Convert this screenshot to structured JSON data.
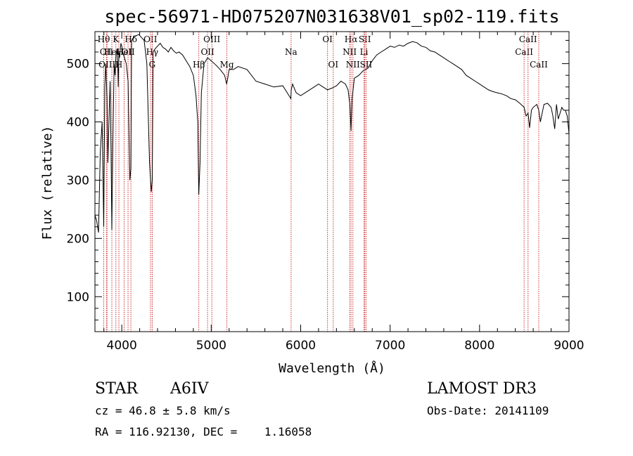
{
  "chart_data": {
    "type": "line",
    "title": "spec-56971-HD075207N031638V01_sp02-119.fits",
    "xlabel": "Wavelength (Å)",
    "ylabel": "Flux (relative)",
    "xlim": [
      3700,
      9000
    ],
    "ylim": [
      40,
      555
    ],
    "x_ticks": [
      4000,
      5000,
      6000,
      7000,
      8000,
      9000
    ],
    "y_ticks": [
      100,
      200,
      300,
      400,
      500
    ],
    "grid": false,
    "series": [
      {
        "x": [
          3700,
          3720,
          3740,
          3760,
          3780,
          3798,
          3810,
          3820,
          3835,
          3845,
          3860,
          3870,
          3880,
          3889,
          3900,
          3915,
          3925,
          3935,
          3945,
          3955,
          3960,
          3968,
          3975,
          3990,
          4000,
          4010,
          4030,
          4050,
          4070,
          4090,
          4102,
          4110,
          4130,
          4160,
          4190,
          4220,
          4250,
          4280,
          4310,
          4330,
          4341,
          4350,
          4370,
          4400,
          4430,
          4460,
          4490,
          4520,
          4550,
          4580,
          4610,
          4640,
          4680,
          4720,
          4760,
          4800,
          4830,
          4850,
          4861,
          4875,
          4890,
          4920,
          4960,
          5000,
          5050,
          5100,
          5150,
          5172,
          5185,
          5200,
          5250,
          5300,
          5400,
          5500,
          5600,
          5700,
          5800,
          5850,
          5890,
          5895,
          5910,
          5950,
          6000,
          6050,
          6100,
          6150,
          6200,
          6250,
          6300,
          6350,
          6400,
          6450,
          6500,
          6530,
          6550,
          6563,
          6575,
          6600,
          6650,
          6700,
          6750,
          6800,
          6850,
          6900,
          6950,
          7000,
          7050,
          7100,
          7150,
          7200,
          7250,
          7300,
          7350,
          7400,
          7450,
          7500,
          7550,
          7600,
          7650,
          7700,
          7750,
          7800,
          7850,
          7900,
          7950,
          8000,
          8050,
          8100,
          8150,
          8200,
          8250,
          8300,
          8350,
          8400,
          8450,
          8498,
          8520,
          8542,
          8560,
          8580,
          8600,
          8640,
          8662,
          8680,
          8720,
          8760,
          8800,
          8820,
          8840,
          8860,
          8880,
          8900,
          8920,
          8940,
          8960,
          8980,
          9000
        ],
        "y": [
          240,
          230,
          210,
          350,
          400,
          220,
          460,
          500,
          440,
          330,
          420,
          470,
          350,
          215,
          360,
          500,
          480,
          515,
          525,
          500,
          460,
          520,
          510,
          535,
          530,
          520,
          510,
          500,
          470,
          300,
          320,
          540,
          545,
          548,
          550,
          545,
          540,
          500,
          330,
          280,
          300,
          520,
          525,
          530,
          535,
          528,
          525,
          520,
          528,
          522,
          518,
          520,
          515,
          505,
          495,
          480,
          445,
          400,
          275,
          330,
          450,
          500,
          510,
          505,
          498,
          490,
          480,
          465,
          475,
          490,
          490,
          495,
          490,
          470,
          465,
          460,
          462,
          450,
          440,
          455,
          465,
          450,
          445,
          450,
          455,
          460,
          465,
          460,
          455,
          458,
          462,
          470,
          465,
          455,
          430,
          385,
          440,
          475,
          480,
          488,
          492,
          505,
          515,
          520,
          525,
          530,
          528,
          532,
          530,
          535,
          538,
          536,
          530,
          528,
          522,
          520,
          515,
          510,
          505,
          500,
          495,
          490,
          480,
          475,
          470,
          465,
          460,
          455,
          452,
          450,
          448,
          445,
          440,
          438,
          432,
          425,
          410,
          415,
          390,
          420,
          425,
          430,
          420,
          400,
          430,
          432,
          425,
          410,
          388,
          430,
          405,
          415,
          425,
          420,
          420,
          410,
          380
        ]
      }
    ],
    "line_ids": [
      {
        "x": 3798,
        "label": "Hθ",
        "row": 1
      },
      {
        "x": 3829,
        "label": "OII",
        "row": 2
      },
      {
        "x": 3835,
        "label": "OIII",
        "row": 3
      },
      {
        "x": 3889,
        "label": "HeI",
        "row": 2
      },
      {
        "x": 3934,
        "label": "K",
        "row": 1
      },
      {
        "x": 3968,
        "label": "H",
        "row": 3
      },
      {
        "x": 4026,
        "label": "HeI",
        "row": 2
      },
      {
        "x": 4102,
        "label": "Hδ",
        "row": 1
      },
      {
        "x": 4070,
        "label": "OII",
        "row": 2
      },
      {
        "x": 4320,
        "label": "OII",
        "row": 1
      },
      {
        "x": 4340,
        "label": "Hγ",
        "row": 2
      },
      {
        "x": 4340,
        "label": "G",
        "row": 3
      },
      {
        "x": 4861,
        "label": "Hβ",
        "row": 3
      },
      {
        "x": 4959,
        "label": "OII",
        "row": 2
      },
      {
        "x": 5007,
        "label": "OIII",
        "row": 1
      },
      {
        "x": 5175,
        "label": "Mg",
        "row": 3
      },
      {
        "x": 5893,
        "label": "Na",
        "row": 2
      },
      {
        "x": 6300,
        "label": "OI",
        "row": 1
      },
      {
        "x": 6364,
        "label": "OI",
        "row": 3
      },
      {
        "x": 6563,
        "label": "Hα",
        "row": 1
      },
      {
        "x": 6548,
        "label": "NII",
        "row": 2
      },
      {
        "x": 6584,
        "label": "NII",
        "row": 3
      },
      {
        "x": 6717,
        "label": "SII",
        "row": 1
      },
      {
        "x": 6708,
        "label": "Li",
        "row": 2
      },
      {
        "x": 6731,
        "label": "SII",
        "row": 3
      },
      {
        "x": 8498,
        "label": "CaII",
        "row": 2
      },
      {
        "x": 8542,
        "label": "CaII",
        "row": 1
      },
      {
        "x": 8662,
        "label": "CaII",
        "row": 3
      }
    ]
  },
  "info": {
    "object_class": "STAR",
    "subclass": "A6IV",
    "survey": "LAMOST DR3",
    "cz": "cz = 46.8 ± 5.8 km/s",
    "obs_date": "Obs-Date: 20141109",
    "coords": "RA = 116.92130, DEC =    1.16058"
  },
  "colors": {
    "spectrum": "#000000",
    "line_marker": "#cc3333",
    "axes": "#000000"
  }
}
